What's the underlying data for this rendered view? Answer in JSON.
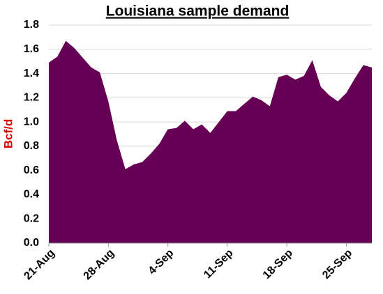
{
  "chart_data": {
    "type": "area",
    "title": "Louisiana sample demand",
    "y_label": "Bcf/d",
    "categories": [
      "21-Aug",
      null,
      null,
      null,
      null,
      null,
      null,
      "28-Aug",
      null,
      null,
      null,
      null,
      null,
      null,
      "4-Sep",
      null,
      null,
      null,
      null,
      null,
      null,
      "11-Sep",
      null,
      null,
      null,
      null,
      null,
      null,
      "18-Sep",
      null,
      null,
      null,
      null,
      null,
      null,
      "25-Sep",
      null,
      null,
      null
    ],
    "values": [
      1.49,
      1.54,
      1.67,
      1.61,
      1.53,
      1.45,
      1.41,
      1.17,
      0.85,
      0.61,
      0.65,
      0.67,
      0.74,
      0.82,
      0.94,
      0.95,
      1.01,
      0.94,
      0.98,
      0.91,
      1.0,
      1.09,
      1.09,
      1.15,
      1.21,
      1.18,
      1.13,
      1.37,
      1.39,
      1.35,
      1.38,
      1.51,
      1.29,
      1.22,
      1.17,
      1.24,
      1.36,
      1.47,
      1.45
    ],
    "color": "#660055",
    "ylim": [
      0,
      1.8
    ],
    "yticks": [
      {
        "value": 0,
        "label": "0.0"
      },
      0.2,
      0.4,
      0.6,
      0.8,
      {
        "value": 1,
        "label": "1.0"
      },
      1.2,
      1.4,
      1.6,
      1.8
    ],
    "grid": true
  }
}
